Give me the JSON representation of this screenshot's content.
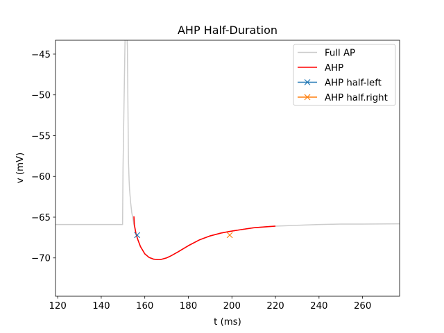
{
  "chart_data": {
    "type": "line",
    "title": "AHP Half-Duration",
    "xlabel": "t (ms)",
    "ylabel": "v (mV)",
    "xlim": [
      119,
      277
    ],
    "ylim": [
      -74.7,
      -43.3
    ],
    "xticks": [
      120,
      140,
      160,
      180,
      200,
      220,
      240,
      260
    ],
    "yticks": [
      -45,
      -50,
      -55,
      -60,
      -65,
      -70
    ],
    "xtick_labels": [
      "120",
      "140",
      "160",
      "180",
      "200",
      "220",
      "240",
      "260"
    ],
    "ytick_labels": [
      "−45",
      "−50",
      "−55",
      "−60",
      "−65",
      "−70"
    ],
    "grid": false,
    "legend_position": "top-right",
    "series": [
      {
        "name": "Full AP",
        "kind": "line",
        "color": "#cccccc",
        "x": [
          119,
          149.8,
          150.0,
          151.0,
          151.5,
          151.7,
          152.0,
          152.5,
          152.8,
          153.0,
          153.5,
          154.0,
          155.0,
          156.0,
          157.0,
          158.0,
          160.0,
          162.0,
          164.0,
          166.0,
          167.0,
          168.0,
          170.0,
          172.0,
          175.0,
          180.0,
          185.0,
          190.0,
          195.0,
          199.0,
          205.0,
          210.0,
          215.0,
          220.0,
          230.0,
          240.0,
          250.0,
          260.0,
          277.0
        ],
        "y": [
          -65.9,
          -65.9,
          -59.0,
          -42.0,
          -30.0,
          -42.0,
          -44.0,
          -58.0,
          -60.5,
          -61.6,
          -63.2,
          -64.4,
          -65.9,
          -67.1,
          -67.9,
          -68.6,
          -69.5,
          -69.95,
          -70.15,
          -70.2,
          -70.2,
          -70.15,
          -70.0,
          -69.75,
          -69.3,
          -68.5,
          -67.8,
          -67.3,
          -66.95,
          -66.75,
          -66.5,
          -66.3,
          -66.2,
          -66.1,
          -66.0,
          -65.9,
          -65.85,
          -65.85,
          -65.82
        ]
      },
      {
        "name": "AHP",
        "kind": "line",
        "color": "#ff0000",
        "x": [
          155.0,
          155.2,
          156.0,
          157.0,
          158.0,
          160.0,
          162.0,
          164.0,
          166.0,
          167.0,
          168.0,
          170.0,
          172.0,
          175.0,
          180.0,
          185.0,
          190.0,
          195.0,
          199.0,
          205.0,
          210.0,
          215.0,
          220.0
        ],
        "y": [
          -64.9,
          -65.9,
          -67.1,
          -67.9,
          -68.6,
          -69.5,
          -69.95,
          -70.15,
          -70.2,
          -70.2,
          -70.15,
          -70.0,
          -69.75,
          -69.3,
          -68.5,
          -67.8,
          -67.3,
          -66.95,
          -66.75,
          -66.5,
          -66.3,
          -66.2,
          -66.1
        ]
      },
      {
        "name": "AHP half-left",
        "kind": "marker",
        "color": "#1f77b4",
        "x": [
          156.5
        ],
        "y": [
          -67.2
        ]
      },
      {
        "name": "AHP half.right",
        "kind": "marker",
        "color": "#ff7f0e",
        "x": [
          199.0
        ],
        "y": [
          -67.2
        ]
      }
    ]
  }
}
